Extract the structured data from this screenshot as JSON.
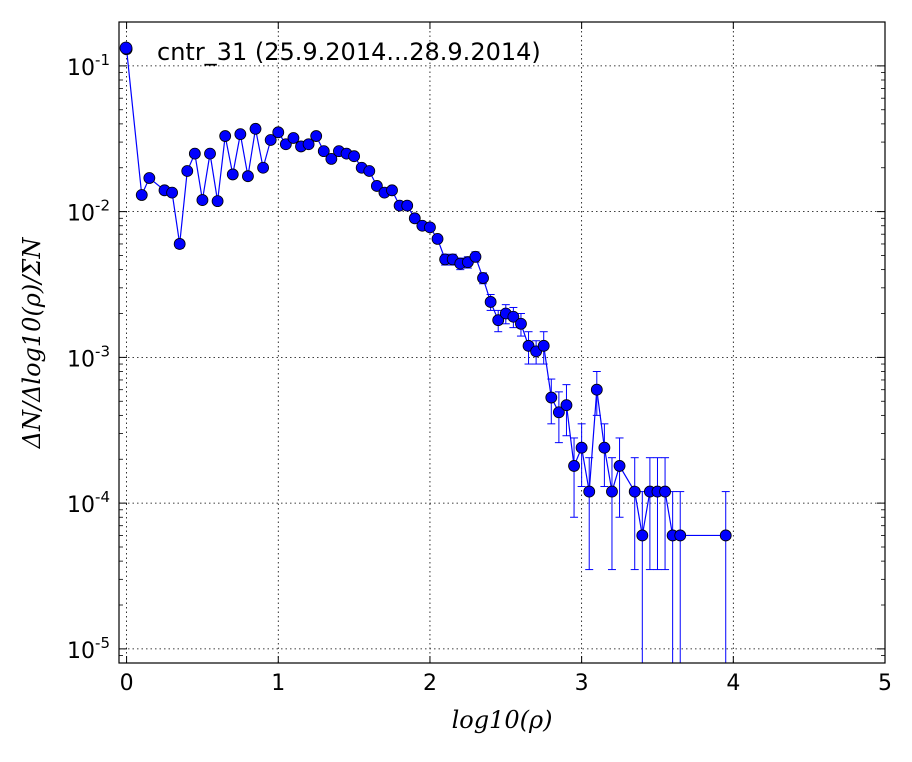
{
  "chart_data": {
    "type": "scatter",
    "title": "",
    "xlabel": "log10(ρ)",
    "ylabel": "ΔN/Δlog10(ρ)/ΣN",
    "xscale": "linear",
    "yscale": "log",
    "xlim": [
      -0.05,
      5
    ],
    "ylim": [
      8e-06,
      0.2
    ],
    "grid": true,
    "legend_placement": "top-left",
    "x_ticks": [
      {
        "value": 0,
        "label": "0"
      },
      {
        "value": 1,
        "label": "1"
      },
      {
        "value": 2,
        "label": "2"
      },
      {
        "value": 3,
        "label": "3"
      },
      {
        "value": 4,
        "label": "4"
      },
      {
        "value": 5,
        "label": "5"
      }
    ],
    "y_ticks": [
      {
        "value": 0.1,
        "base": "10",
        "exp": "-1"
      },
      {
        "value": 0.01,
        "base": "10",
        "exp": "-2"
      },
      {
        "value": 0.001,
        "base": "10",
        "exp": "-3"
      },
      {
        "value": 0.0001,
        "base": "10",
        "exp": "-4"
      },
      {
        "value": 1e-05,
        "base": "10",
        "exp": "-5"
      }
    ],
    "series": [
      {
        "name": "cntr_31 (25.9.2014...28.9.2014)",
        "color": "#0000ff",
        "marker": "circle",
        "points": [
          {
            "x": 0.0,
            "y": 0.13
          },
          {
            "x": 0.1,
            "y": 0.013
          },
          {
            "x": 0.15,
            "y": 0.017
          },
          {
            "x": 0.25,
            "y": 0.014
          },
          {
            "x": 0.3,
            "y": 0.0135
          },
          {
            "x": 0.35,
            "y": 0.006,
            "err": 0.0004
          },
          {
            "x": 0.4,
            "y": 0.019
          },
          {
            "x": 0.45,
            "y": 0.025
          },
          {
            "x": 0.5,
            "y": 0.012
          },
          {
            "x": 0.55,
            "y": 0.025
          },
          {
            "x": 0.6,
            "y": 0.0118
          },
          {
            "x": 0.65,
            "y": 0.033
          },
          {
            "x": 0.7,
            "y": 0.018
          },
          {
            "x": 0.75,
            "y": 0.034
          },
          {
            "x": 0.8,
            "y": 0.0175
          },
          {
            "x": 0.85,
            "y": 0.037
          },
          {
            "x": 0.9,
            "y": 0.02
          },
          {
            "x": 0.95,
            "y": 0.031
          },
          {
            "x": 1.0,
            "y": 0.035
          },
          {
            "x": 1.05,
            "y": 0.029
          },
          {
            "x": 1.1,
            "y": 0.032
          },
          {
            "x": 1.15,
            "y": 0.028
          },
          {
            "x": 1.2,
            "y": 0.029
          },
          {
            "x": 1.25,
            "y": 0.033
          },
          {
            "x": 1.3,
            "y": 0.026
          },
          {
            "x": 1.35,
            "y": 0.023
          },
          {
            "x": 1.4,
            "y": 0.026
          },
          {
            "x": 1.45,
            "y": 0.025
          },
          {
            "x": 1.5,
            "y": 0.024
          },
          {
            "x": 1.55,
            "y": 0.02
          },
          {
            "x": 1.6,
            "y": 0.019
          },
          {
            "x": 1.65,
            "y": 0.015
          },
          {
            "x": 1.7,
            "y": 0.0135
          },
          {
            "x": 1.75,
            "y": 0.014
          },
          {
            "x": 1.8,
            "y": 0.011
          },
          {
            "x": 1.85,
            "y": 0.011
          },
          {
            "x": 1.9,
            "y": 0.009
          },
          {
            "x": 1.95,
            "y": 0.008
          },
          {
            "x": 2.0,
            "y": 0.0078,
            "err": 0.0004
          },
          {
            "x": 2.05,
            "y": 0.0065,
            "err": 0.0004
          },
          {
            "x": 2.1,
            "y": 0.0047,
            "err": 0.0004
          },
          {
            "x": 2.15,
            "y": 0.0047,
            "err": 0.0004
          },
          {
            "x": 2.2,
            "y": 0.0044,
            "err": 0.0004
          },
          {
            "x": 2.25,
            "y": 0.0045,
            "err": 0.0004
          },
          {
            "x": 2.3,
            "y": 0.0049,
            "err": 0.0004
          },
          {
            "x": 2.35,
            "y": 0.0035,
            "err": 0.0003
          },
          {
            "x": 2.4,
            "y": 0.0024,
            "err": 0.0003
          },
          {
            "x": 2.45,
            "y": 0.0018,
            "err": 0.0003
          },
          {
            "x": 2.5,
            "y": 0.002,
            "err": 0.0003
          },
          {
            "x": 2.55,
            "y": 0.0019,
            "err": 0.0003
          },
          {
            "x": 2.6,
            "y": 0.0017,
            "err": 0.0003
          },
          {
            "x": 2.65,
            "y": 0.0012,
            "err": 0.0003
          },
          {
            "x": 2.7,
            "y": 0.0011,
            "err": 0.0002
          },
          {
            "x": 2.75,
            "y": 0.0012,
            "err": 0.0003
          },
          {
            "x": 2.8,
            "y": 0.00053,
            "err": 0.00018
          },
          {
            "x": 2.85,
            "y": 0.00042,
            "err": 0.00016
          },
          {
            "x": 2.9,
            "y": 0.00047,
            "err": 0.00018
          },
          {
            "x": 2.95,
            "y": 0.00018,
            "err": 0.0001
          },
          {
            "x": 3.0,
            "y": 0.00024,
            "err": 0.00011
          },
          {
            "x": 3.05,
            "y": 0.00012,
            "err": 8.5e-05
          },
          {
            "x": 3.1,
            "y": 0.0006,
            "err": 0.0002
          },
          {
            "x": 3.15,
            "y": 0.00024,
            "err": 0.00011
          },
          {
            "x": 3.2,
            "y": 0.00012,
            "err": 8.5e-05
          },
          {
            "x": 3.25,
            "y": 0.00018,
            "err": 0.0001
          },
          {
            "x": 3.35,
            "y": 0.00012,
            "err": 8.5e-05
          },
          {
            "x": 3.4,
            "y": 6e-05,
            "err": 6e-05
          },
          {
            "x": 3.45,
            "y": 0.00012,
            "err": 8.5e-05
          },
          {
            "x": 3.5,
            "y": 0.00012,
            "err": 8.5e-05
          },
          {
            "x": 3.55,
            "y": 0.00012,
            "err": 8.5e-05
          },
          {
            "x": 3.6,
            "y": 6e-05,
            "err": 6e-05
          },
          {
            "x": 3.65,
            "y": 6e-05,
            "err": 6e-05
          },
          {
            "x": 3.95,
            "y": 6e-05,
            "err": 6e-05
          }
        ]
      }
    ]
  }
}
